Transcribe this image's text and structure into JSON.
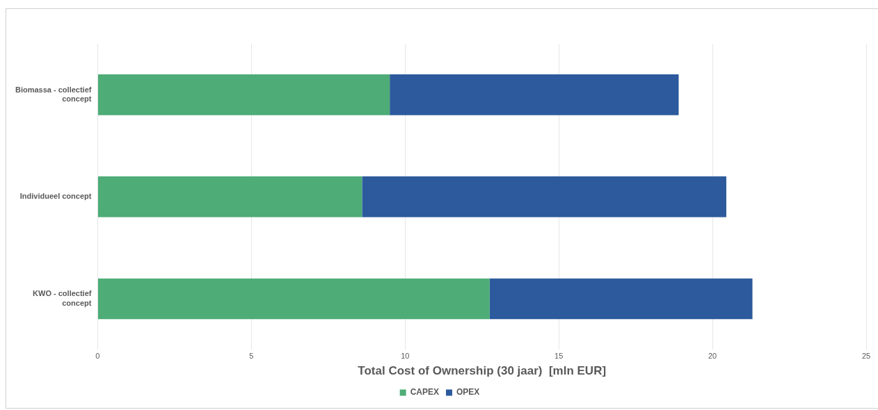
{
  "chart_data": {
    "type": "bar",
    "orientation": "horizontal",
    "stacked": true,
    "xlabel": "Total Cost of Ownership (30 jaar)  [mln EUR]",
    "categories": [
      "Biomassa - collectief concept",
      "Individueel concept",
      "KWO - collectief concept"
    ],
    "series": [
      {
        "name": "CAPEX",
        "color": "#4eac76",
        "values": [
          9.5,
          8.6,
          12.75
        ]
      },
      {
        "name": "OPEX",
        "color": "#2c5a9c",
        "values": [
          9.4,
          11.85,
          8.55
        ]
      }
    ],
    "xlim": [
      0,
      25
    ],
    "xticks": [
      0,
      5,
      10,
      15,
      20,
      25
    ],
    "grid": "x",
    "legend": "bottom"
  }
}
